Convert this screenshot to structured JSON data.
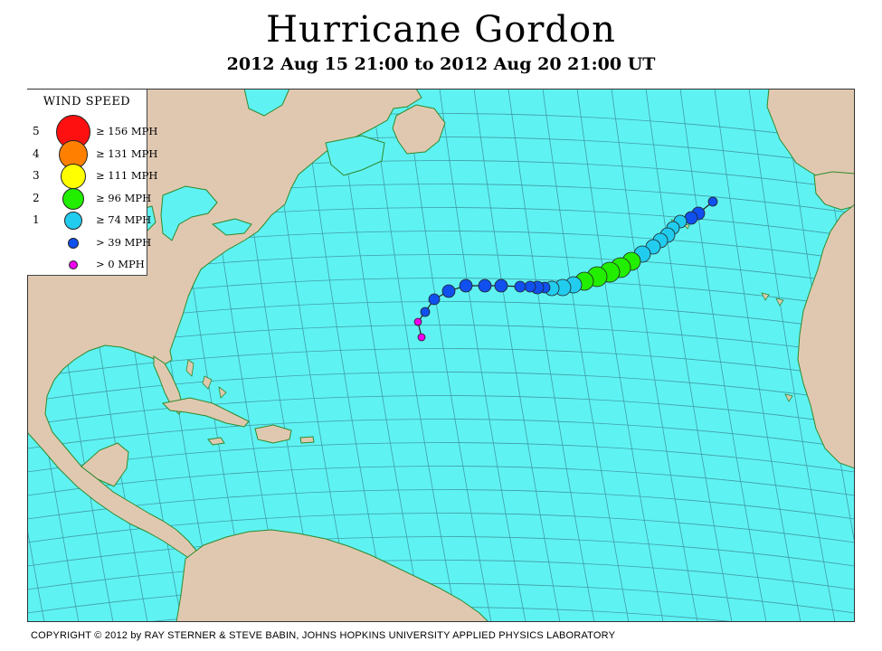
{
  "title": "Hurricane Gordon",
  "subtitle": "2012 Aug 15 21:00 to 2012 Aug 20 21:00 UT",
  "legend": {
    "title": "WIND SPEED",
    "items": [
      {
        "cat": "5",
        "label": "≥ 156 MPH",
        "color": "#ff1010"
      },
      {
        "cat": "4",
        "label": "≥ 131 MPH",
        "color": "#ff8000"
      },
      {
        "cat": "3",
        "label": "≥ 111 MPH",
        "color": "#ffff00"
      },
      {
        "cat": "2",
        "label": "≥ 96 MPH",
        "color": "#22ee00"
      },
      {
        "cat": "1",
        "label": "≥ 74 MPH",
        "color": "#22ccee"
      },
      {
        "cat": "",
        "label": "> 39 MPH",
        "color": "#1050ee"
      },
      {
        "cat": "",
        "label": "> 0 MPH",
        "color": "#ee00ee"
      }
    ]
  },
  "colors": {
    "ocean": "#5ff2f2",
    "land": "#e0c8b0",
    "coast": "#2e8a2e",
    "grid": "#3b8f9a"
  },
  "copyright": "COPYRIGHT © 2012 by RAY STERNER & STEVE BABIN, JOHNS HOPKINS UNIVERSITY APPLIED PHYSICS LABORATORY"
}
